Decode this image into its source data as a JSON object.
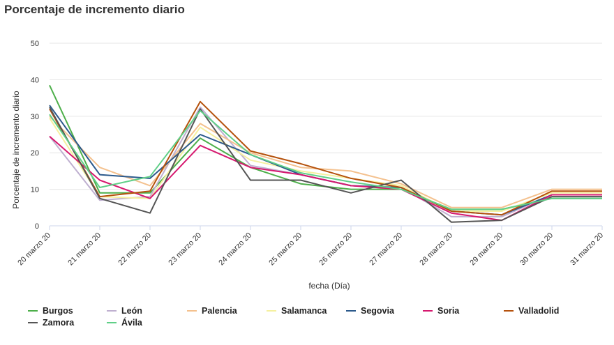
{
  "chart_data": {
    "type": "line",
    "title": "Porcentaje de incremento diario",
    "xlabel": "fecha (Día)",
    "ylabel": "Porcentaje de incremento diario",
    "ylim": [
      0,
      50
    ],
    "yticks": [
      0,
      10,
      20,
      30,
      40,
      50
    ],
    "grid": true,
    "legend_position": "bottom",
    "categories": [
      "20 marzo 20",
      "21 marzo 20",
      "22 marzo 20",
      "23 marzo 20",
      "24 marzo 20",
      "25 marzo 20",
      "26 marzo 20",
      "27 marzo 20",
      "28 marzo 20",
      "29 marzo 20",
      "30 marzo 20",
      "31 marzo 20"
    ],
    "series": [
      {
        "name": "Burgos",
        "color": "#4daf4a",
        "values": [
          38.5,
          9.0,
          9.0,
          24.0,
          16.0,
          11.5,
          10.0,
          10.0,
          4.5,
          4.5,
          7.5,
          7.5
        ]
      },
      {
        "name": "León",
        "color": "#bfb0d0",
        "values": [
          24.5,
          7.0,
          8.0,
          32.5,
          16.5,
          14.0,
          11.0,
          10.5,
          2.5,
          2.5,
          8.5,
          8.5
        ]
      },
      {
        "name": "Palencia",
        "color": "#f4c18e",
        "values": [
          30.0,
          16.0,
          11.0,
          28.0,
          20.0,
          16.0,
          15.0,
          11.5,
          5.0,
          5.0,
          10.0,
          10.0
        ]
      },
      {
        "name": "Salamanca",
        "color": "#f5f0a0",
        "values": [
          29.5,
          8.0,
          7.5,
          27.0,
          18.0,
          15.0,
          13.0,
          11.0,
          4.0,
          4.0,
          9.0,
          9.0
        ]
      },
      {
        "name": "Segovia",
        "color": "#2c5a8c",
        "values": [
          33.0,
          14.0,
          13.0,
          25.0,
          19.5,
          14.0,
          11.0,
          10.5,
          4.0,
          3.0,
          8.5,
          8.5
        ]
      },
      {
        "name": "Soria",
        "color": "#d6196f",
        "values": [
          24.5,
          12.5,
          7.5,
          22.0,
          16.0,
          14.0,
          11.0,
          10.0,
          3.5,
          1.5,
          8.5,
          8.5
        ]
      },
      {
        "name": "Valladolid",
        "color": "#b5520d",
        "values": [
          32.0,
          8.0,
          9.5,
          34.0,
          20.5,
          17.0,
          13.0,
          10.5,
          4.0,
          3.0,
          9.5,
          9.5
        ]
      },
      {
        "name": "Zamora",
        "color": "#555555",
        "values": [
          32.5,
          7.5,
          3.5,
          32.0,
          12.5,
          12.5,
          9.0,
          12.5,
          1.0,
          1.5,
          8.0,
          8.0
        ]
      },
      {
        "name": "Ávila",
        "color": "#5fcf87",
        "values": [
          30.5,
          10.5,
          13.5,
          31.5,
          19.5,
          14.5,
          12.0,
          10.0,
          4.5,
          4.5,
          7.5,
          7.5
        ]
      }
    ]
  }
}
